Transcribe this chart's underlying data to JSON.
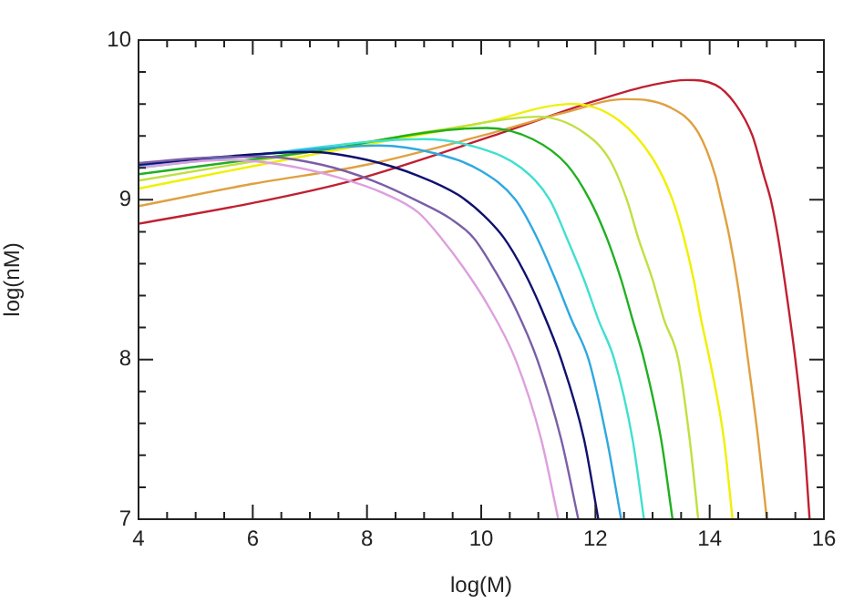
{
  "chart_data": {
    "type": "line",
    "xlabel": "log(M)",
    "ylabel": "log(nM)",
    "xlim": [
      4,
      16
    ],
    "ylim": [
      7,
      10
    ],
    "xticks": [
      4,
      {
        "value": 4.5,
        "label": null
      },
      {
        "value": 5,
        "label": null
      },
      {
        "value": 5.5,
        "label": null
      },
      6,
      {
        "value": 6.5,
        "label": null
      },
      {
        "value": 7,
        "label": null
      },
      {
        "value": 7.5,
        "label": null
      },
      8,
      {
        "value": 8.5,
        "label": null
      },
      {
        "value": 9,
        "label": null
      },
      {
        "value": 9.5,
        "label": null
      },
      10,
      {
        "value": 10.5,
        "label": null
      },
      {
        "value": 11,
        "label": null
      },
      {
        "value": 11.5,
        "label": null
      },
      12,
      {
        "value": 12.5,
        "label": null
      },
      {
        "value": 13,
        "label": null
      },
      {
        "value": 13.5,
        "label": null
      },
      14,
      {
        "value": 14.5,
        "label": null
      },
      {
        "value": 15,
        "label": null
      },
      {
        "value": 15.5,
        "label": null
      },
      16
    ],
    "yticks": [
      7,
      {
        "value": 7.2,
        "label": null
      },
      {
        "value": 7.4,
        "label": null
      },
      {
        "value": 7.6,
        "label": null
      },
      {
        "value": 7.8,
        "label": null
      },
      8,
      {
        "value": 8.2,
        "label": null
      },
      {
        "value": 8.4,
        "label": null
      },
      {
        "value": 8.6,
        "label": null
      },
      {
        "value": 8.8,
        "label": null
      },
      9,
      {
        "value": 9.2,
        "label": null
      },
      {
        "value": 9.4,
        "label": null
      },
      {
        "value": 9.6,
        "label": null
      },
      {
        "value": 9.8,
        "label": null
      },
      10
    ],
    "grid": false,
    "legend": false,
    "marker": "none",
    "line_style": "solid",
    "series": [
      {
        "color": "#dda0dd",
        "x": [
          4,
          5,
          5.6,
          6.5,
          7.5,
          8.3,
          8.9,
          9.3,
          9.7,
          10.1,
          10.6,
          11.05,
          11.35
        ],
        "values": [
          9.2,
          9.24,
          9.25,
          9.22,
          9.14,
          9.04,
          8.92,
          8.76,
          8.57,
          8.35,
          8.0,
          7.5,
          7.0
        ]
      },
      {
        "color": "#7b5ea7",
        "x": [
          4,
          5,
          6.2,
          7.2,
          8.1,
          8.9,
          9.47,
          9.87,
          10.25,
          10.6,
          10.98,
          11.4,
          11.7
        ],
        "values": [
          9.23,
          9.26,
          9.27,
          9.22,
          9.12,
          8.99,
          8.88,
          8.76,
          8.55,
          8.32,
          8.0,
          7.5,
          7.0
        ]
      },
      {
        "color": "#101070",
        "x": [
          4,
          5.5,
          7,
          8,
          8.9,
          9.6,
          10.05,
          10.4,
          10.75,
          11.05,
          11.4,
          11.8,
          12.05
        ],
        "values": [
          9.22,
          9.27,
          9.3,
          9.25,
          9.15,
          9.03,
          8.9,
          8.76,
          8.55,
          8.32,
          8.0,
          7.5,
          7.0
        ]
      },
      {
        "color": "#30a8e0",
        "x": [
          4,
          6,
          8.2,
          9.2,
          10.0,
          10.6,
          10.98,
          11.3,
          11.58,
          11.88,
          12.2,
          12.45
        ],
        "values": [
          9.21,
          9.28,
          9.34,
          9.29,
          9.18,
          9.0,
          8.76,
          8.5,
          8.25,
          8.0,
          7.5,
          7.0
        ]
      },
      {
        "color": "#40e0d0",
        "x": [
          4,
          6,
          9,
          10,
          10.7,
          11.2,
          11.5,
          11.8,
          12.05,
          12.33,
          12.65,
          12.85
        ],
        "values": [
          9.2,
          9.28,
          9.38,
          9.32,
          9.2,
          9.0,
          8.76,
          8.5,
          8.25,
          8.0,
          7.5,
          7.0
        ]
      },
      {
        "color": "#20b020",
        "x": [
          4,
          7,
          10.1,
          10.9,
          11.5,
          11.9,
          12.2,
          12.45,
          12.65,
          12.85,
          13.15,
          13.35
        ],
        "values": [
          9.16,
          9.3,
          9.45,
          9.38,
          9.22,
          9.0,
          8.76,
          8.5,
          8.25,
          8.0,
          7.5,
          7.0
        ]
      },
      {
        "color": "#c0e040",
        "x": [
          4,
          7,
          9.5,
          11,
          11.8,
          12.25,
          12.55,
          12.75,
          13.0,
          13.2,
          13.45,
          13.65,
          13.8
        ],
        "values": [
          9.12,
          9.3,
          9.45,
          9.52,
          9.42,
          9.25,
          9.0,
          8.76,
          8.5,
          8.25,
          8.0,
          7.5,
          7.0
        ]
      },
      {
        "color": "#f0f000",
        "x": [
          4,
          7,
          10,
          11.6,
          12.4,
          13.0,
          13.35,
          13.55,
          13.72,
          13.85,
          14.0,
          14.25,
          14.4
        ],
        "values": [
          9.07,
          9.28,
          9.48,
          9.6,
          9.5,
          9.26,
          9.0,
          8.76,
          8.5,
          8.25,
          8.0,
          7.5,
          7.0
        ]
      },
      {
        "color": "#e0a040",
        "x": [
          4,
          6,
          8,
          10,
          11.5,
          12.5,
          13.3,
          13.8,
          14.1,
          14.2,
          14.35,
          14.5,
          14.67,
          14.85,
          15.0
        ],
        "values": [
          8.96,
          9.1,
          9.22,
          9.4,
          9.55,
          9.63,
          9.58,
          9.42,
          9.15,
          9.0,
          8.76,
          8.45,
          8.0,
          7.5,
          7.0
        ]
      },
      {
        "color": "#c02030",
        "x": [
          4,
          6,
          7.74,
          10.2,
          12,
          13,
          13.6,
          14.1,
          14.45,
          14.75,
          14.95,
          15.07,
          15.2,
          15.35,
          15.5,
          15.65,
          15.75
        ],
        "values": [
          8.85,
          8.98,
          9.12,
          9.4,
          9.62,
          9.72,
          9.75,
          9.72,
          9.6,
          9.4,
          9.15,
          9.0,
          8.76,
          8.4,
          8.0,
          7.5,
          7.0
        ]
      }
    ]
  }
}
